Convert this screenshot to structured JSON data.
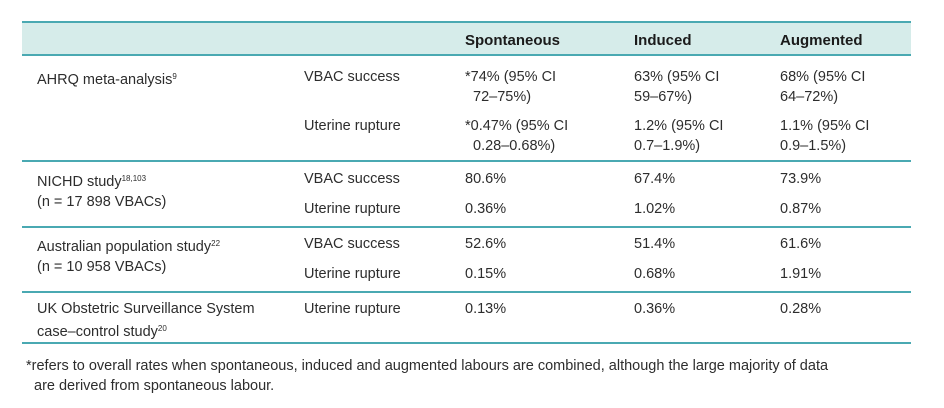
{
  "headers": [
    "",
    "",
    "Spontaneous",
    "Induced",
    "Augmented"
  ],
  "rows": {
    "ahrq": {
      "study": "AHRQ meta-analysis",
      "sup": "9",
      "r1": {
        "outcome": "VBAC success",
        "sp1": "*74% (95% CI",
        "sp2": "72–75%)",
        "in1": "63% (95% CI",
        "in2": "59–67%)",
        "au1": "68% (95% CI",
        "au2": "64–72%)"
      },
      "r2": {
        "outcome": "Uterine rupture",
        "sp1": "*0.47% (95% CI",
        "sp2": "0.28–0.68%)",
        "in1": "1.2% (95% CI",
        "in2": "0.7–1.9%)",
        "au1": "1.1% (95% CI",
        "au2": "0.9–1.5%)"
      }
    },
    "nichd": {
      "study1": "NICHD study",
      "sup": "18,103",
      "study2": "(n = 17 898 VBACs)",
      "r1": {
        "outcome": "VBAC success",
        "sp": "80.6%",
        "in": "67.4%",
        "au": "73.9%"
      },
      "r2": {
        "outcome": "Uterine rupture",
        "sp": "0.36%",
        "in": "1.02%",
        "au": "0.87%"
      }
    },
    "aus": {
      "study1": "Australian population study",
      "sup": "22",
      "study2": "(n = 10 958 VBACs)",
      "r1": {
        "outcome": "VBAC success",
        "sp": "52.6%",
        "in": "51.4%",
        "au": "61.6%"
      },
      "r2": {
        "outcome": "Uterine rupture",
        "sp": "0.15%",
        "in": "0.68%",
        "au": "1.91%"
      }
    },
    "uk": {
      "study1": "UK Obstetric Surveillance System",
      "study2": "case–control study",
      "sup": "20",
      "r1": {
        "outcome": "Uterine rupture",
        "sp": "0.13%",
        "in": "0.36%",
        "au": "0.28%"
      }
    }
  },
  "footnote": {
    "line1": "*refers to overall rates when spontaneous, induced and augmented labours are combined, although the large majority of data",
    "line2": "are derived from spontaneous labour."
  },
  "colors": {
    "header_bg": "#d6ecea",
    "rule": "#4aa9b2"
  }
}
